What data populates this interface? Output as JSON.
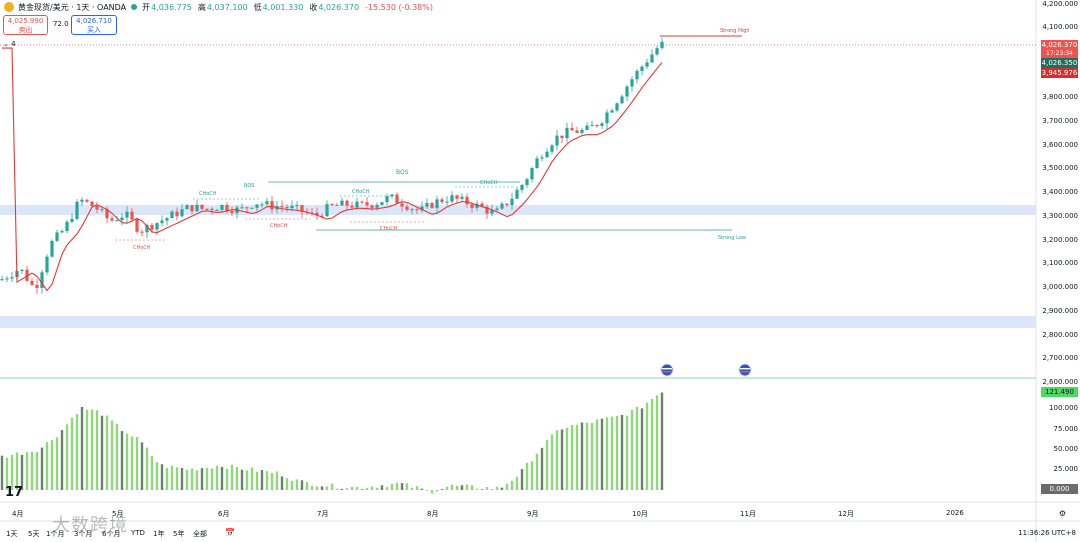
{
  "header": {
    "symbol_title": "黄金现货/美元 · 1天 · OANDA",
    "open_label": "开",
    "open": "4,036.775",
    "high_label": "高",
    "high": "4,037.100",
    "low_label": "低",
    "low": "4,001.330",
    "close_label": "收",
    "close": "4,026.370",
    "change": "-15.530 (-0.38%)"
  },
  "trade": {
    "sell_price": "4,025.990",
    "sell_label": "卖出",
    "spread": "72.0",
    "buy_price": "4,026.710",
    "buy_label": "买入"
  },
  "indicator_count": "4",
  "price_axis": [
    "4,200.000",
    "4,100.000",
    "3,900.000",
    "3,800.000",
    "3,700.000",
    "3,600.000",
    "3,500.000",
    "3,400.000",
    "3,300.000",
    "3,200.000",
    "3,100.000",
    "3,000.000",
    "2,900.000",
    "2,800.000",
    "2,700.000",
    "2,600.000"
  ],
  "price_tags": {
    "last": "4,026.370",
    "countdown": "17:23:34",
    "tag2": "4,026.350",
    "tag3": "3,945.976"
  },
  "osc_axis": [
    "100.000",
    "75.000",
    "50.000",
    "25.000"
  ],
  "osc_tags": {
    "value": "121.490",
    "zero": "0.000"
  },
  "time_axis": [
    "4月",
    "5月",
    "6月",
    "7月",
    "8月",
    "9月",
    "10月",
    "11月",
    "12月",
    "2026"
  ],
  "annotations": {
    "bos": "BOS",
    "choch": "CHoCH",
    "strong_high": "Strong High",
    "strong_low": "Strong Low"
  },
  "bottom_bar": {
    "timeframes": [
      "1天",
      "5天",
      "1个月",
      "3个月",
      "6个月",
      "YTD",
      "1年",
      "5年",
      "全部"
    ],
    "clock": "11:36:26 UTC+8"
  },
  "watermark": "大数跨境",
  "colors": {
    "bull": "#26a69a",
    "bear": "#ef5350",
    "ma": "#e53935",
    "zone": "#dbe6fb",
    "osc_bar": "#8fd97a",
    "osc_bar_dark": "#6e7f6e"
  }
}
